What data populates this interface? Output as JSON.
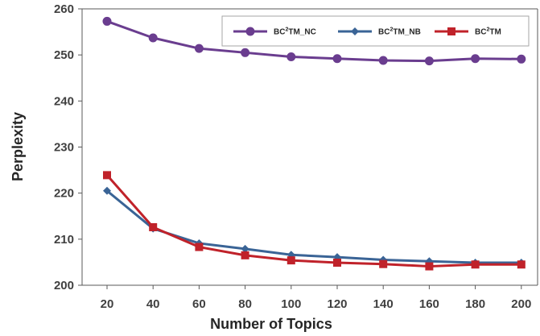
{
  "chart_data": {
    "type": "line",
    "title": "",
    "xlabel": "Number of Topics",
    "ylabel": "Perplexity",
    "x": [
      20,
      40,
      60,
      80,
      100,
      120,
      140,
      160,
      180,
      200
    ],
    "xticks": [
      "20",
      "40",
      "60",
      "80",
      "100",
      "120",
      "140",
      "160",
      "180",
      "200"
    ],
    "ylim": [
      200,
      260
    ],
    "yticks": [
      "200",
      "210",
      "220",
      "230",
      "240",
      "250",
      "260"
    ],
    "grid": false,
    "legend_position": "top-right",
    "series": [
      {
        "name_base": "BC",
        "name_sup": "2",
        "name_rest": "TM_NC",
        "color": "#6a3d8f",
        "marker": "circle",
        "values": [
          257.3,
          253.7,
          251.4,
          250.5,
          249.6,
          249.2,
          248.8,
          248.7,
          249.2,
          249.1
        ]
      },
      {
        "name_base": "BC",
        "name_sup": "2",
        "name_rest": "TM_NB",
        "color": "#3a6496",
        "marker": "diamond",
        "values": [
          220.5,
          212.3,
          209.1,
          207.9,
          206.6,
          206.1,
          205.5,
          205.2,
          204.9,
          204.9
        ]
      },
      {
        "name_base": "BC",
        "name_sup": "2",
        "name_rest": "TM",
        "color": "#c0222a",
        "marker": "square",
        "values": [
          223.9,
          212.6,
          208.3,
          206.5,
          205.4,
          204.9,
          204.6,
          204.1,
          204.5,
          204.5
        ]
      }
    ]
  }
}
